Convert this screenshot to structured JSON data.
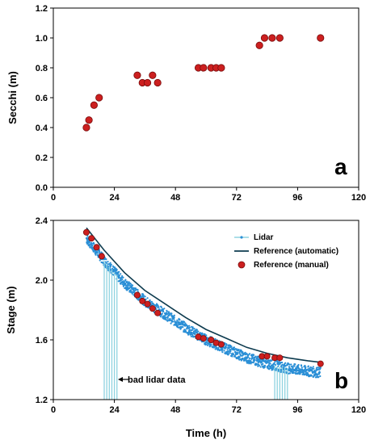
{
  "chart_data": [
    {
      "type": "scatter",
      "panel_label": "a",
      "ylabel": "Secchi (m)",
      "xlabel": "",
      "xlim": [
        0,
        120
      ],
      "ylim": [
        0,
        1.2
      ],
      "x_ticks": [
        "0",
        "24",
        "48",
        "72",
        "96",
        "120"
      ],
      "y_ticks": [
        "0.0",
        "0.2",
        "0.4",
        "0.6",
        "0.8",
        "1.0",
        "1.2"
      ],
      "marker_color": "#cc1f1f",
      "series": [
        {
          "points": [
            [
              13,
              0.4
            ],
            [
              14,
              0.45
            ],
            [
              16,
              0.55
            ],
            [
              18,
              0.6
            ],
            [
              33,
              0.75
            ],
            [
              35,
              0.7
            ],
            [
              37,
              0.7
            ],
            [
              39,
              0.75
            ],
            [
              41,
              0.7
            ],
            [
              57,
              0.8
            ],
            [
              59,
              0.8
            ],
            [
              62,
              0.8
            ],
            [
              64,
              0.8
            ],
            [
              66,
              0.8
            ],
            [
              81,
              0.95
            ],
            [
              83,
              1.0
            ],
            [
              86,
              1.0
            ],
            [
              89,
              1.0
            ],
            [
              105,
              1.0
            ]
          ]
        }
      ]
    },
    {
      "type": "line",
      "panel_label": "b",
      "ylabel": "Stage (m)",
      "xlabel": "Time (h)",
      "xlim": [
        0,
        120
      ],
      "ylim": [
        1.2,
        2.4
      ],
      "x_ticks": [
        "0",
        "24",
        "48",
        "72",
        "96",
        "120"
      ],
      "y_ticks": [
        "1.2",
        "1.6",
        "2.0",
        "2.4"
      ],
      "legend_position": "top-right",
      "annotation": "bad lidar data",
      "series": [
        {
          "name": "Lidar",
          "color": "#2a8fd6",
          "start_time": 13,
          "end_time": 105,
          "start_stage": 2.24,
          "end_stage": 1.4,
          "bad_data_times": [
            20,
            21,
            22,
            23,
            24,
            25,
            87,
            88,
            89,
            90,
            91,
            92
          ]
        },
        {
          "name": "Reference (automatic)",
          "color": "#0d3b4f",
          "points": [
            [
              13,
              2.35
            ],
            [
              20,
              2.2
            ],
            [
              28,
              2.05
            ],
            [
              36,
              1.93
            ],
            [
              44,
              1.84
            ],
            [
              52,
              1.75
            ],
            [
              60,
              1.67
            ],
            [
              68,
              1.61
            ],
            [
              76,
              1.55
            ],
            [
              84,
              1.51
            ],
            [
              92,
              1.48
            ],
            [
              100,
              1.46
            ],
            [
              105,
              1.45
            ]
          ]
        },
        {
          "name": "Reference (manual)",
          "color": "#cc1f1f",
          "points": [
            [
              13,
              2.32
            ],
            [
              15,
              2.28
            ],
            [
              17,
              2.22
            ],
            [
              19,
              2.16
            ],
            [
              33,
              1.9
            ],
            [
              35,
              1.86
            ],
            [
              37,
              1.84
            ],
            [
              39,
              1.81
            ],
            [
              41,
              1.78
            ],
            [
              57,
              1.62
            ],
            [
              59,
              1.61
            ],
            [
              62,
              1.6
            ],
            [
              64,
              1.58
            ],
            [
              66,
              1.57
            ],
            [
              82,
              1.49
            ],
            [
              84,
              1.49
            ],
            [
              87,
              1.48
            ],
            [
              89,
              1.48
            ],
            [
              105,
              1.44
            ]
          ]
        }
      ]
    }
  ]
}
